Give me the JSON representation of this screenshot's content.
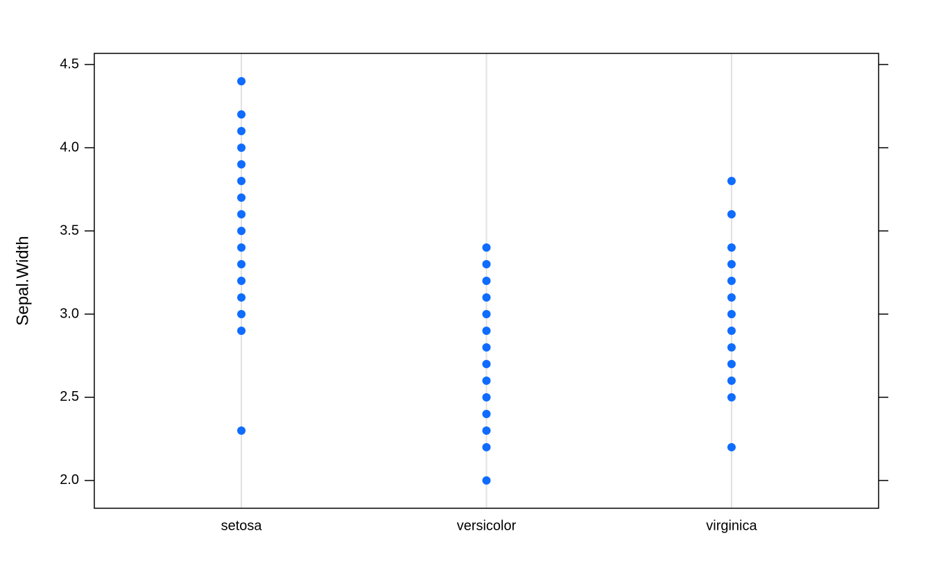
{
  "chart_data": {
    "type": "strip",
    "y_label": "Sepal.Width",
    "categories": [
      "setosa",
      "versicolor",
      "virginica"
    ],
    "values": [
      [
        4.4,
        4.2,
        4.1,
        4.0,
        3.9,
        3.8,
        3.7,
        3.6,
        3.5,
        3.4,
        3.3,
        3.2,
        3.1,
        3.0,
        2.9,
        2.3
      ],
      [
        3.4,
        3.3,
        3.2,
        3.1,
        3.0,
        2.9,
        2.8,
        2.7,
        2.6,
        2.5,
        2.4,
        2.3,
        2.2,
        2.0
      ],
      [
        3.8,
        3.6,
        3.4,
        3.3,
        3.2,
        3.1,
        3.0,
        2.9,
        2.8,
        2.7,
        2.6,
        2.5,
        2.2
      ]
    ],
    "color": "#0f6cff",
    "ylim": [
      1.833,
      4.567
    ],
    "yticks": [
      {
        "value": 2,
        "label": "2.0"
      },
      2.5,
      {
        "value": 3,
        "label": "3.0"
      },
      3.5,
      {
        "value": 4,
        "label": "4.0"
      },
      4.5
    ],
    "grid": true
  }
}
